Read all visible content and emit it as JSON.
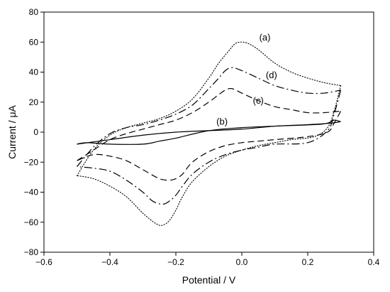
{
  "chart_data": {
    "type": "line",
    "title": "",
    "xlabel": "Potential / V",
    "ylabel": "Current / μA",
    "xlim": [
      -0.6,
      0.4
    ],
    "ylim": [
      -80,
      80
    ],
    "xticks": [
      -0.6,
      -0.4,
      -0.2,
      0,
      0.2,
      0.4
    ],
    "xtick_labels": [
      "−0.6",
      "−0.4",
      "−0.2",
      "0.0",
      "0.2",
      "0.4"
    ],
    "yticks": [
      -80,
      -60,
      -40,
      -20,
      0,
      20,
      40,
      60,
      80
    ],
    "ytick_labels": [
      "−80",
      "−60",
      "−40",
      "−20",
      "0",
      "20",
      "40",
      "60",
      "80"
    ],
    "grid": false,
    "legend": "none",
    "series": [
      {
        "name": "(a)",
        "style": "dotted",
        "label_at": [
          0.07,
          61
        ],
        "forward": [
          [
            -0.5,
            -29
          ],
          [
            -0.45,
            -12
          ],
          [
            -0.4,
            -2
          ],
          [
            -0.35,
            3
          ],
          [
            -0.3,
            6
          ],
          [
            -0.25,
            9
          ],
          [
            -0.2,
            14
          ],
          [
            -0.15,
            22
          ],
          [
            -0.1,
            36
          ],
          [
            -0.07,
            46
          ],
          [
            -0.04,
            54
          ],
          [
            -0.02,
            59
          ],
          [
            0.0,
            60
          ],
          [
            0.02,
            59
          ],
          [
            0.05,
            55
          ],
          [
            0.1,
            46
          ],
          [
            0.15,
            40
          ],
          [
            0.2,
            36
          ],
          [
            0.25,
            33
          ],
          [
            0.3,
            31
          ]
        ],
        "reverse": [
          [
            0.3,
            31
          ],
          [
            0.28,
            14
          ],
          [
            0.26,
            3
          ],
          [
            0.22,
            -3
          ],
          [
            0.15,
            -5
          ],
          [
            0.1,
            -7
          ],
          [
            0.05,
            -9
          ],
          [
            0.0,
            -12
          ],
          [
            -0.05,
            -16
          ],
          [
            -0.1,
            -23
          ],
          [
            -0.15,
            -33
          ],
          [
            -0.18,
            -43
          ],
          [
            -0.2,
            -52
          ],
          [
            -0.22,
            -59
          ],
          [
            -0.24,
            -62
          ],
          [
            -0.26,
            -61
          ],
          [
            -0.3,
            -54
          ],
          [
            -0.35,
            -43
          ],
          [
            -0.4,
            -36
          ],
          [
            -0.45,
            -31
          ],
          [
            -0.5,
            -29
          ]
        ]
      },
      {
        "name": "(d)",
        "style": "dashdot",
        "label_at": [
          0.09,
          36
        ],
        "forward": [
          [
            -0.5,
            -23
          ],
          [
            -0.45,
            -10
          ],
          [
            -0.4,
            -1
          ],
          [
            -0.35,
            3
          ],
          [
            -0.3,
            5
          ],
          [
            -0.25,
            8
          ],
          [
            -0.2,
            12
          ],
          [
            -0.15,
            18
          ],
          [
            -0.1,
            29
          ],
          [
            -0.07,
            36
          ],
          [
            -0.05,
            41
          ],
          [
            -0.03,
            43
          ],
          [
            0.0,
            41
          ],
          [
            0.05,
            36
          ],
          [
            0.1,
            31
          ],
          [
            0.15,
            28
          ],
          [
            0.2,
            26
          ],
          [
            0.25,
            26
          ],
          [
            0.3,
            28
          ]
        ],
        "reverse": [
          [
            0.3,
            28
          ],
          [
            0.28,
            12
          ],
          [
            0.26,
            1
          ],
          [
            0.2,
            -7
          ],
          [
            0.1,
            -8
          ],
          [
            0.05,
            -10
          ],
          [
            0.0,
            -12
          ],
          [
            -0.05,
            -15
          ],
          [
            -0.1,
            -20
          ],
          [
            -0.15,
            -28
          ],
          [
            -0.18,
            -36
          ],
          [
            -0.2,
            -42
          ],
          [
            -0.22,
            -46
          ],
          [
            -0.24,
            -48
          ],
          [
            -0.27,
            -46
          ],
          [
            -0.3,
            -40
          ],
          [
            -0.35,
            -32
          ],
          [
            -0.4,
            -26
          ],
          [
            -0.45,
            -24
          ],
          [
            -0.5,
            -23
          ]
        ]
      },
      {
        "name": "(c)",
        "style": "dashed",
        "label_at": [
          0.05,
          19
        ],
        "forward": [
          [
            -0.5,
            -19
          ],
          [
            -0.45,
            -12
          ],
          [
            -0.4,
            -5
          ],
          [
            -0.35,
            -1
          ],
          [
            -0.3,
            2
          ],
          [
            -0.25,
            5
          ],
          [
            -0.2,
            8
          ],
          [
            -0.15,
            13
          ],
          [
            -0.1,
            20
          ],
          [
            -0.07,
            25
          ],
          [
            -0.05,
            28
          ],
          [
            -0.03,
            29
          ],
          [
            0.0,
            26
          ],
          [
            0.05,
            21
          ],
          [
            0.1,
            17
          ],
          [
            0.15,
            15
          ],
          [
            0.2,
            13
          ],
          [
            0.25,
            13
          ],
          [
            0.3,
            14
          ]
        ],
        "reverse": [
          [
            0.3,
            14
          ],
          [
            0.28,
            6
          ],
          [
            0.26,
            0
          ],
          [
            0.2,
            -3
          ],
          [
            0.1,
            -5
          ],
          [
            0.05,
            -6
          ],
          [
            0.0,
            -7
          ],
          [
            -0.05,
            -9
          ],
          [
            -0.1,
            -13
          ],
          [
            -0.15,
            -20
          ],
          [
            -0.18,
            -28
          ],
          [
            -0.2,
            -31
          ],
          [
            -0.22,
            -32
          ],
          [
            -0.25,
            -31
          ],
          [
            -0.3,
            -25
          ],
          [
            -0.35,
            -19
          ],
          [
            -0.4,
            -16
          ],
          [
            -0.45,
            -15
          ],
          [
            -0.5,
            -19
          ]
        ]
      },
      {
        "name": "(b)",
        "style": "solid",
        "label_at": [
          -0.06,
          5
        ],
        "forward": [
          [
            -0.5,
            -8
          ],
          [
            -0.4,
            -5
          ],
          [
            -0.3,
            -2
          ],
          [
            -0.2,
            0
          ],
          [
            -0.1,
            1
          ],
          [
            0.0,
            2
          ],
          [
            0.1,
            4
          ],
          [
            0.2,
            5
          ],
          [
            0.27,
            6
          ],
          [
            0.3,
            7
          ]
        ],
        "reverse": [
          [
            0.3,
            7
          ],
          [
            0.28,
            8
          ],
          [
            0.26,
            6
          ],
          [
            0.22,
            5
          ],
          [
            0.1,
            4
          ],
          [
            0.0,
            3
          ],
          [
            -0.1,
            1
          ],
          [
            -0.2,
            -4
          ],
          [
            -0.25,
            -6
          ],
          [
            -0.3,
            -8
          ],
          [
            -0.4,
            -8
          ],
          [
            -0.47,
            -7
          ],
          [
            -0.5,
            -8
          ]
        ]
      }
    ]
  }
}
